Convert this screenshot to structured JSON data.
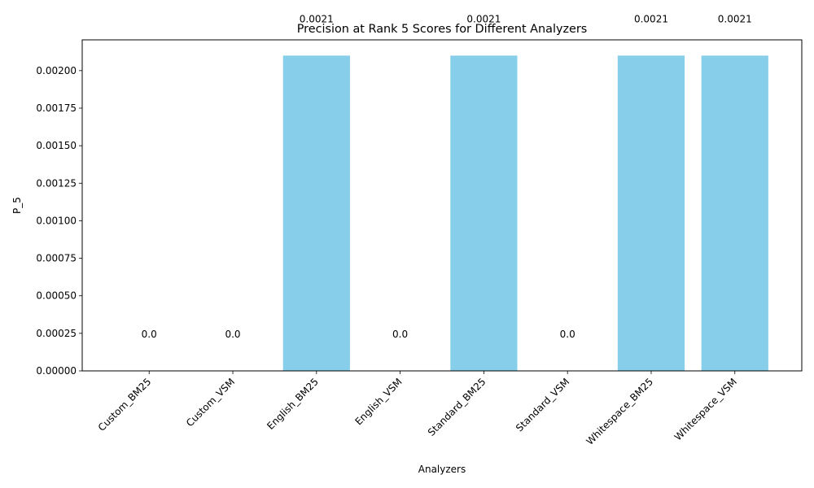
{
  "chart_data": {
    "type": "bar",
    "title": "Precision at Rank 5 Scores for Different Analyzers",
    "xlabel": "Analyzers",
    "ylabel": "P_5",
    "categories": [
      "Custom_BM25",
      "Custom_VSM",
      "English_BM25",
      "English_VSM",
      "Standard_BM25",
      "Standard_VSM",
      "Whitespace_BM25",
      "Whitespace_VSM"
    ],
    "values": [
      0.0,
      0.0,
      0.0021,
      0.0,
      0.0021,
      0.0,
      0.0021,
      0.0021
    ],
    "data_labels": [
      "0.0",
      "0.0",
      "0.0021",
      "0.0",
      "0.0021",
      "0.0",
      "0.0021",
      "0.0021"
    ],
    "ylim": [
      0,
      0.002205
    ],
    "yticks": [
      "0.00000",
      "0.00025",
      "0.00050",
      "0.00075",
      "0.00100",
      "0.00125",
      "0.00150",
      "0.00175",
      "0.00200"
    ],
    "ytick_values": [
      0,
      0.00025,
      0.0005,
      0.00075,
      0.001,
      0.00125,
      0.0015,
      0.00175,
      0.002
    ],
    "bar_color": "#87ceeb",
    "grid": false,
    "legend": "none"
  }
}
